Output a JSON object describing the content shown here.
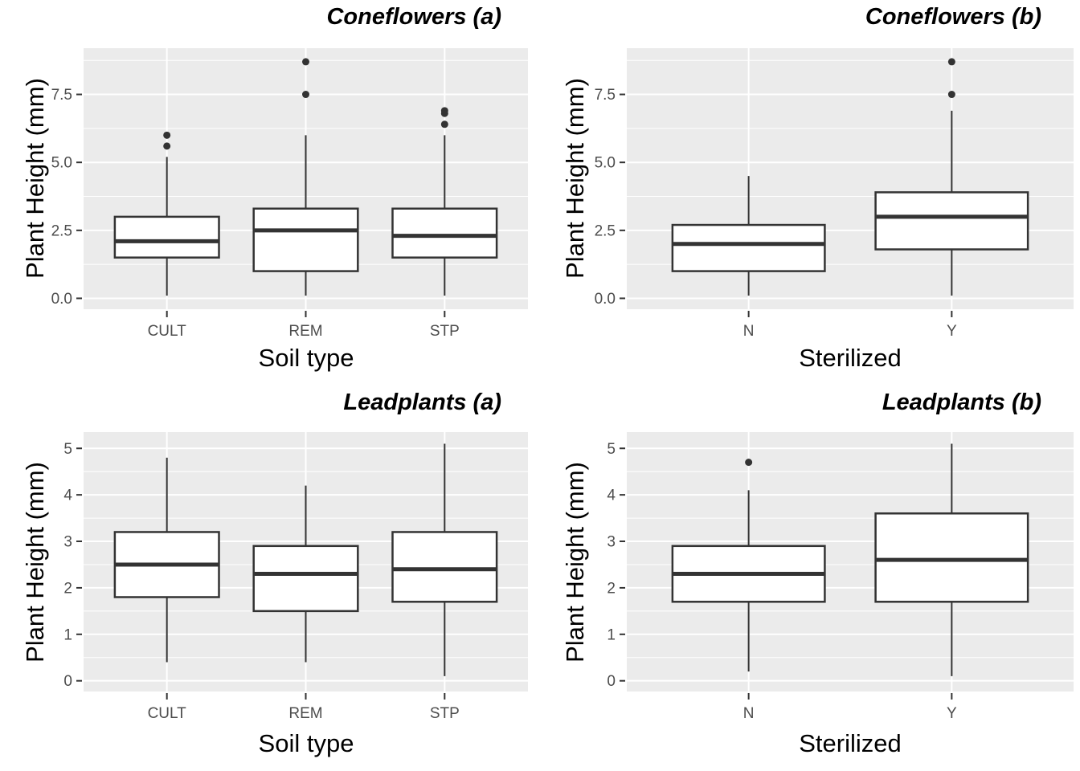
{
  "figure": {
    "kind": "boxplot-grid",
    "rows": 2,
    "cols": 2
  },
  "style": {
    "panel_bg": "#ebebeb",
    "gridline": "#ffffff",
    "box_stroke": "#333333",
    "box_fill": "#ffffff",
    "axis_tick_text": "#4d4d4d",
    "axis_title_text": "#000000",
    "tick_mark": "#333333"
  },
  "chart_data": [
    {
      "type": "boxplot",
      "title": "Coneflowers (a)",
      "xlabel": "Soil type",
      "ylabel": "Plant Height (mm)",
      "categories": [
        "CULT",
        "REM",
        "STP"
      ],
      "ylim": [
        -0.4,
        9.2
      ],
      "yticks": [
        0,
        2.5,
        5,
        7.5
      ],
      "ytick_labels": [
        "0.0",
        "2.5",
        "5.0",
        "7.5"
      ],
      "minor_ticks": [
        1.25,
        3.75,
        6.25,
        8.75
      ],
      "grid": true,
      "legend": "none",
      "boxes": [
        {
          "category": "CULT",
          "whisker_low": 0.1,
          "q1": 1.5,
          "median": 2.1,
          "q3": 3.0,
          "whisker_high": 5.2,
          "outliers": [
            5.6,
            6.0
          ]
        },
        {
          "category": "REM",
          "whisker_low": 0.1,
          "q1": 1.0,
          "median": 2.5,
          "q3": 3.3,
          "whisker_high": 6.0,
          "outliers": [
            7.5,
            8.7
          ]
        },
        {
          "category": "STP",
          "whisker_low": 0.1,
          "q1": 1.5,
          "median": 2.3,
          "q3": 3.3,
          "whisker_high": 6.0,
          "outliers": [
            6.4,
            6.8,
            6.9
          ]
        }
      ]
    },
    {
      "type": "boxplot",
      "title": "Coneflowers (b)",
      "xlabel": "Sterilized",
      "ylabel": "Plant Height (mm)",
      "categories": [
        "N",
        "Y"
      ],
      "ylim": [
        -0.4,
        9.2
      ],
      "yticks": [
        0,
        2.5,
        5,
        7.5
      ],
      "ytick_labels": [
        "0.0",
        "2.5",
        "5.0",
        "7.5"
      ],
      "minor_ticks": [
        1.25,
        3.75,
        6.25,
        8.75
      ],
      "grid": true,
      "legend": "none",
      "boxes": [
        {
          "category": "N",
          "whisker_low": 0.1,
          "q1": 1.0,
          "median": 2.0,
          "q3": 2.7,
          "whisker_high": 4.5,
          "outliers": []
        },
        {
          "category": "Y",
          "whisker_low": 0.1,
          "q1": 1.8,
          "median": 3.0,
          "q3": 3.9,
          "whisker_high": 6.9,
          "outliers": [
            7.5,
            8.7
          ]
        }
      ]
    },
    {
      "type": "boxplot",
      "title": "Leadplants (a)",
      "xlabel": "Soil type",
      "ylabel": "Plant Height (mm)",
      "categories": [
        "CULT",
        "REM",
        "STP"
      ],
      "ylim": [
        -0.23,
        5.35
      ],
      "yticks": [
        0,
        1,
        2,
        3,
        4,
        5
      ],
      "ytick_labels": [
        "0",
        "1",
        "2",
        "3",
        "4",
        "5"
      ],
      "minor_ticks": [
        0.5,
        1.5,
        2.5,
        3.5,
        4.5
      ],
      "grid": true,
      "legend": "none",
      "boxes": [
        {
          "category": "CULT",
          "whisker_low": 0.4,
          "q1": 1.8,
          "median": 2.5,
          "q3": 3.2,
          "whisker_high": 4.8,
          "outliers": []
        },
        {
          "category": "REM",
          "whisker_low": 0.4,
          "q1": 1.5,
          "median": 2.3,
          "q3": 2.9,
          "whisker_high": 4.2,
          "outliers": []
        },
        {
          "category": "STP",
          "whisker_low": 0.1,
          "q1": 1.7,
          "median": 2.4,
          "q3": 3.2,
          "whisker_high": 5.1,
          "outliers": []
        }
      ]
    },
    {
      "type": "boxplot",
      "title": "Leadplants (b)",
      "xlabel": "Sterilized",
      "ylabel": "Plant Height (mm)",
      "categories": [
        "N",
        "Y"
      ],
      "ylim": [
        -0.23,
        5.35
      ],
      "yticks": [
        0,
        1,
        2,
        3,
        4,
        5
      ],
      "ytick_labels": [
        "0",
        "1",
        "2",
        "3",
        "4",
        "5"
      ],
      "minor_ticks": [
        0.5,
        1.5,
        2.5,
        3.5,
        4.5
      ],
      "grid": true,
      "legend": "none",
      "boxes": [
        {
          "category": "N",
          "whisker_low": 0.2,
          "q1": 1.7,
          "median": 2.3,
          "q3": 2.9,
          "whisker_high": 4.1,
          "outliers": [
            4.7
          ]
        },
        {
          "category": "Y",
          "whisker_low": 0.1,
          "q1": 1.7,
          "median": 2.6,
          "q3": 3.6,
          "whisker_high": 5.1,
          "outliers": []
        }
      ]
    }
  ]
}
